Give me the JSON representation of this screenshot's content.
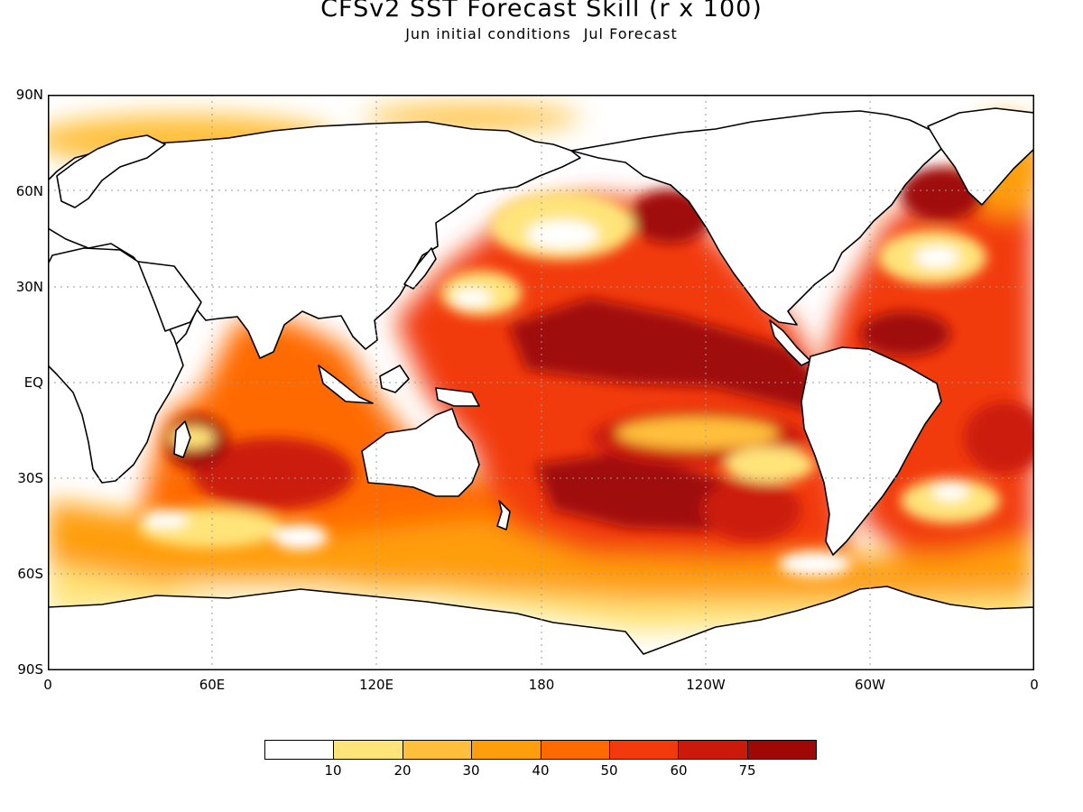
{
  "title": "CFSv2 SST Forecast Skill (r x 100)",
  "subtitle": {
    "left": "Jun initial conditions",
    "right": "Jul Forecast"
  },
  "map": {
    "projection": "cylindrical-equidistant",
    "lon_range": [
      0,
      360
    ],
    "lat_range": [
      -90,
      90
    ],
    "grid": true,
    "lat_labels": [
      "90N",
      "60N",
      "30N",
      "EQ",
      "30S",
      "60S",
      "90S"
    ],
    "lon_labels": [
      "0",
      "60E",
      "120E",
      "180",
      "120W",
      "60W",
      "0"
    ]
  },
  "colorbar": {
    "colors": [
      "#ffffff",
      "#ffe47a",
      "#ffbf3a",
      "#ff9e0c",
      "#ff6a00",
      "#f23a0c",
      "#cc1a0a",
      "#a00808"
    ],
    "labels": [
      "10",
      "20",
      "30",
      "40",
      "50",
      "60",
      "75"
    ]
  }
}
